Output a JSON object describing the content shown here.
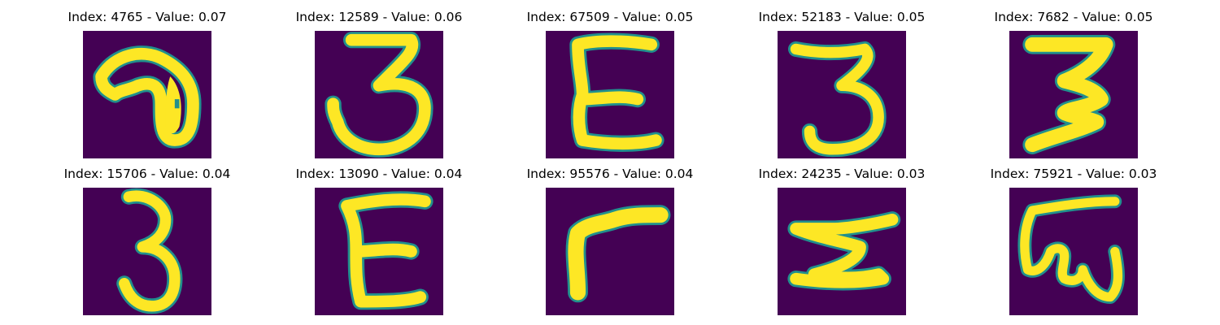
{
  "figure": {
    "colormap": "viridis",
    "background_color": "#440154",
    "stroke_color": "#fde725",
    "panels": [
      {
        "title": "Index: 4765 - Value: 0.07"
      },
      {
        "title": "Index: 12589 - Value: 0.06"
      },
      {
        "title": "Index: 67509 - Value: 0.05"
      },
      {
        "title": "Index: 52183 - Value: 0.05"
      },
      {
        "title": "Index: 7682 - Value: 0.05"
      },
      {
        "title": "Index: 15706 - Value: 0.04"
      },
      {
        "title": "Index: 13090 - Value: 0.04"
      },
      {
        "title": "Index: 95576 - Value: 0.04"
      },
      {
        "title": "Index: 24235 - Value: 0.03"
      },
      {
        "title": "Index: 75921 - Value: 0.03"
      }
    ]
  }
}
